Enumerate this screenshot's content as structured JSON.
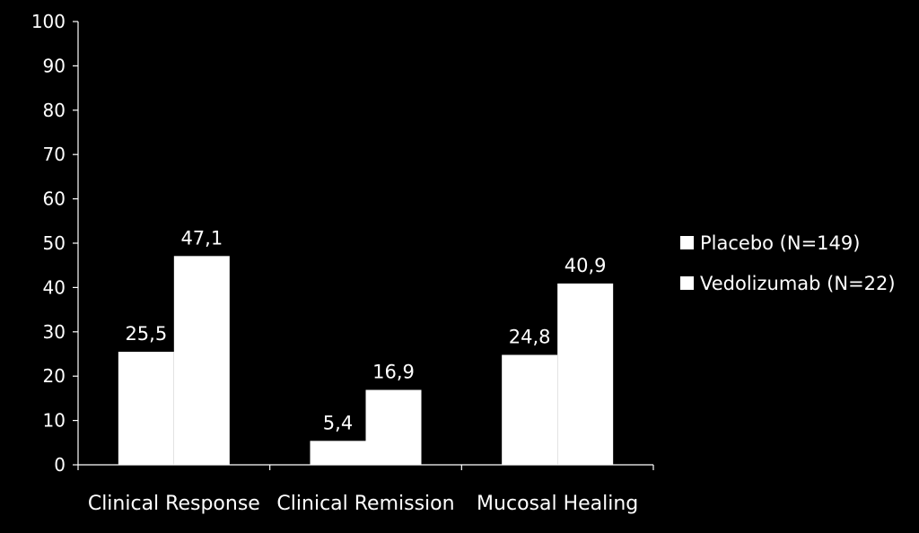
{
  "chart_data": {
    "type": "bar",
    "title": "",
    "xlabel": "",
    "ylabel": "",
    "categories": [
      "Clinical Response",
      "Clinical Remission",
      "Mucosal Healing"
    ],
    "series": [
      {
        "name": "Placebo (N=149)",
        "values": [
          25.5,
          5.4,
          24.8
        ],
        "labels": [
          "25,5",
          "5,4",
          "24,8"
        ],
        "color": "#ffffff"
      },
      {
        "name": "Vedolizumab (N=22)",
        "values": [
          47.1,
          16.9,
          40.9
        ],
        "labels": [
          "47,1",
          "16,9",
          "40,9"
        ],
        "color": "#ffffff"
      }
    ],
    "ylim": [
      0,
      100
    ],
    "yticks": [
      0,
      10,
      20,
      30,
      40,
      50,
      60,
      70,
      80,
      90,
      100
    ],
    "grid": false,
    "legend": "right",
    "background": "#000000",
    "text_color": "#ffffff"
  }
}
